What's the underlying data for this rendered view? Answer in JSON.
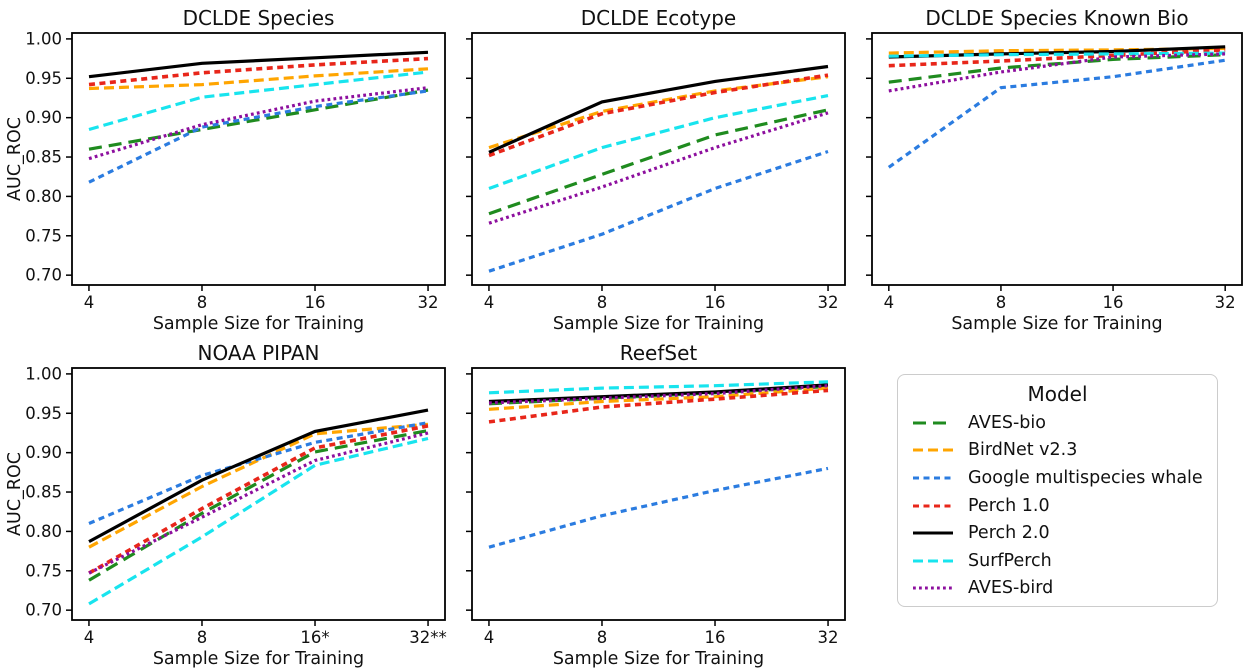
{
  "figure": {
    "background": "#ffffff",
    "xlabel": "Sample Size for Training",
    "ylabel": "AUC_ROC",
    "ylim": [
      0.6875,
      1.0075
    ],
    "yticks": [
      {
        "value": 1.0,
        "label": "1.00"
      },
      {
        "value": 0.95,
        "label": "0.95"
      },
      {
        "value": 0.9,
        "label": "0.90"
      },
      {
        "value": 0.85,
        "label": "0.85"
      },
      {
        "value": 0.8,
        "label": "0.80"
      },
      {
        "value": 0.75,
        "label": "0.75"
      },
      {
        "value": 0.7,
        "label": "0.70"
      }
    ]
  },
  "models": [
    {
      "name": "AVES-bio",
      "color": "#1f8b1f",
      "linestyle": "long-dash"
    },
    {
      "name": "BirdNet v2.3",
      "color": "#ffa500",
      "linestyle": "dash"
    },
    {
      "name": "Google multispecies whale",
      "color": "#2b7ce0",
      "linestyle": "short-dash"
    },
    {
      "name": "Perch 1.0",
      "color": "#e8261a",
      "linestyle": "short-dash"
    },
    {
      "name": "Perch 2.0",
      "color": "#000000",
      "linestyle": "solid"
    },
    {
      "name": "SurfPerch",
      "color": "#18e4ee",
      "linestyle": "dash"
    },
    {
      "name": "AVES-bird",
      "color": "#8d0f9e",
      "linestyle": "dotted"
    }
  ],
  "legend": {
    "title": "Model"
  },
  "chart_data": [
    {
      "type": "line",
      "title": "DCLDE Species",
      "xlabel": "Sample Size for Training",
      "ylabel": "AUC_ROC",
      "x": [
        4,
        8,
        16,
        32
      ],
      "xticklabels": [
        "4",
        "8",
        "16",
        "32"
      ],
      "xscale": "log2",
      "ylim": [
        0.6875,
        1.0075
      ],
      "series": [
        {
          "name": "AVES-bio",
          "values": [
            0.86,
            0.885,
            0.91,
            0.935
          ]
        },
        {
          "name": "BirdNet v2.3",
          "values": [
            0.937,
            0.942,
            0.953,
            0.962
          ]
        },
        {
          "name": "Google multispecies whale",
          "values": [
            0.818,
            0.888,
            0.914,
            0.934
          ]
        },
        {
          "name": "Perch 1.0",
          "values": [
            0.942,
            0.957,
            0.967,
            0.975
          ]
        },
        {
          "name": "Perch 2.0",
          "values": [
            0.952,
            0.969,
            0.976,
            0.983
          ]
        },
        {
          "name": "SurfPerch",
          "values": [
            0.885,
            0.926,
            0.942,
            0.958
          ]
        },
        {
          "name": "AVES-bird",
          "values": [
            0.848,
            0.891,
            0.921,
            0.938
          ]
        }
      ]
    },
    {
      "type": "line",
      "title": "DCLDE Ecotype",
      "xlabel": "Sample Size for Training",
      "ylabel": "AUC_ROC",
      "x": [
        4,
        8,
        16,
        32
      ],
      "xticklabels": [
        "4",
        "8",
        "16",
        "32"
      ],
      "xscale": "log2",
      "ylim": [
        0.6875,
        1.0075
      ],
      "series": [
        {
          "name": "AVES-bio",
          "values": [
            0.778,
            0.828,
            0.878,
            0.91
          ]
        },
        {
          "name": "BirdNet v2.3",
          "values": [
            0.862,
            0.908,
            0.934,
            0.952
          ]
        },
        {
          "name": "Google multispecies whale",
          "values": [
            0.705,
            0.752,
            0.81,
            0.857
          ]
        },
        {
          "name": "Perch 1.0",
          "values": [
            0.852,
            0.905,
            0.932,
            0.954
          ]
        },
        {
          "name": "Perch 2.0",
          "values": [
            0.856,
            0.92,
            0.946,
            0.965
          ]
        },
        {
          "name": "SurfPerch",
          "values": [
            0.81,
            0.862,
            0.9,
            0.928
          ]
        },
        {
          "name": "AVES-bird",
          "values": [
            0.766,
            0.812,
            0.862,
            0.906
          ]
        }
      ]
    },
    {
      "type": "line",
      "title": "DCLDE Species Known Bio",
      "xlabel": "Sample Size for Training",
      "ylabel": "AUC_ROC",
      "x": [
        4,
        8,
        16,
        32
      ],
      "xticklabels": [
        "4",
        "8",
        "16",
        "32"
      ],
      "xscale": "log2",
      "ylim": [
        0.6875,
        1.0075
      ],
      "series": [
        {
          "name": "AVES-bio",
          "values": [
            0.945,
            0.963,
            0.974,
            0.98
          ]
        },
        {
          "name": "BirdNet v2.3",
          "values": [
            0.982,
            0.985,
            0.986,
            0.988
          ]
        },
        {
          "name": "Google multispecies whale",
          "values": [
            0.837,
            0.938,
            0.952,
            0.973
          ]
        },
        {
          "name": "Perch 1.0",
          "values": [
            0.966,
            0.972,
            0.979,
            0.986
          ]
        },
        {
          "name": "Perch 2.0",
          "values": [
            0.977,
            0.981,
            0.984,
            0.99
          ]
        },
        {
          "name": "SurfPerch",
          "values": [
            0.978,
            0.98,
            0.981,
            0.982
          ]
        },
        {
          "name": "AVES-bird",
          "values": [
            0.934,
            0.958,
            0.977,
            0.981
          ]
        }
      ]
    },
    {
      "type": "line",
      "title": "NOAA PIPAN",
      "xlabel": "Sample Size for Training",
      "ylabel": "AUC_ROC",
      "x": [
        4,
        8,
        16,
        32
      ],
      "xticklabels": [
        "4",
        "8",
        "16*",
        "32**"
      ],
      "xscale": "log2",
      "ylim": [
        0.6875,
        1.0075
      ],
      "series": [
        {
          "name": "AVES-bio",
          "values": [
            0.738,
            0.823,
            0.901,
            0.928
          ]
        },
        {
          "name": "BirdNet v2.3",
          "values": [
            0.78,
            0.857,
            0.924,
            0.936
          ]
        },
        {
          "name": "Google multispecies whale",
          "values": [
            0.81,
            0.871,
            0.913,
            0.938
          ]
        },
        {
          "name": "Perch 1.0",
          "values": [
            0.747,
            0.829,
            0.906,
            0.934
          ]
        },
        {
          "name": "Perch 2.0",
          "values": [
            0.787,
            0.865,
            0.927,
            0.954
          ]
        },
        {
          "name": "SurfPerch",
          "values": [
            0.708,
            0.793,
            0.884,
            0.918
          ]
        },
        {
          "name": "AVES-bird",
          "values": [
            0.747,
            0.818,
            0.89,
            0.925
          ]
        }
      ]
    },
    {
      "type": "line",
      "title": "ReefSet",
      "xlabel": "Sample Size for Training",
      "ylabel": "AUC_ROC",
      "x": [
        4,
        8,
        16,
        32
      ],
      "xticklabels": [
        "4",
        "8",
        "16",
        "32"
      ],
      "xscale": "log2",
      "ylim": [
        0.6875,
        1.0075
      ],
      "series": [
        {
          "name": "AVES-bio",
          "values": [
            0.962,
            0.969,
            0.976,
            0.984
          ]
        },
        {
          "name": "BirdNet v2.3",
          "values": [
            0.955,
            0.965,
            0.971,
            0.982
          ]
        },
        {
          "name": "Google multispecies whale",
          "values": [
            0.78,
            0.82,
            0.852,
            0.88
          ]
        },
        {
          "name": "Perch 1.0",
          "values": [
            0.939,
            0.958,
            0.968,
            0.979
          ]
        },
        {
          "name": "Perch 2.0",
          "values": [
            0.965,
            0.971,
            0.977,
            0.986
          ]
        },
        {
          "name": "SurfPerch",
          "values": [
            0.976,
            0.982,
            0.985,
            0.99
          ]
        },
        {
          "name": "AVES-bird",
          "values": [
            0.963,
            0.969,
            0.975,
            0.985
          ]
        }
      ]
    }
  ]
}
